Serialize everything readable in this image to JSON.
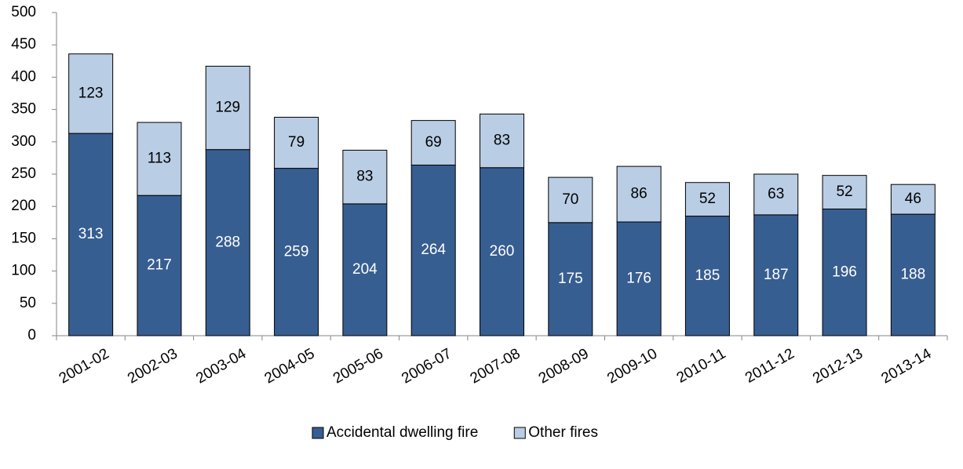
{
  "chart_data": {
    "type": "stacked_bar",
    "categories": [
      "2001-02",
      "2002-03",
      "2003-04",
      "2004-05",
      "2005-06",
      "2006-07",
      "2007-08",
      "2008-09",
      "2009-10",
      "2010-11",
      "2011-12",
      "2012-13",
      "2013-14"
    ],
    "series": [
      {
        "name": "Accidental dwelling fire",
        "color": "#375e91",
        "label_color": "#ffffff",
        "values": [
          313,
          217,
          288,
          259,
          204,
          264,
          260,
          175,
          176,
          185,
          187,
          196,
          188
        ]
      },
      {
        "name": "Other fires",
        "color": "#b9cde5",
        "label_color": "#000000",
        "values": [
          123,
          113,
          129,
          79,
          83,
          69,
          83,
          70,
          86,
          52,
          63,
          52,
          46
        ]
      }
    ],
    "ylim": [
      0,
      500
    ],
    "yticks": [
      0,
      50,
      100,
      150,
      200,
      250,
      300,
      350,
      400,
      450,
      500
    ],
    "legend": "bottom"
  }
}
